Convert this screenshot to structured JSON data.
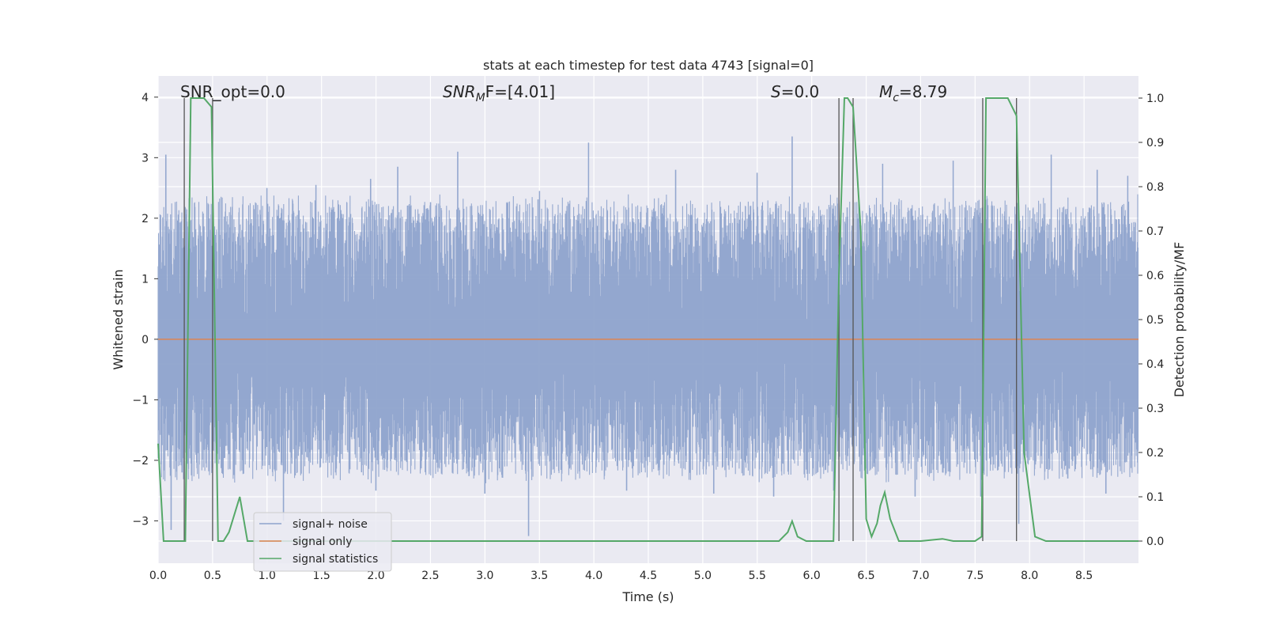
{
  "chart_data": {
    "type": "line",
    "title": "stats at each timestep for test data 4743 [signal=0]",
    "xlabel": "Time (s)",
    "ylabel_left": "Whitened strain",
    "ylabel_right": "Detection probability/MF",
    "xlim": [
      0.0,
      9.0
    ],
    "ylim_left": [
      -3.7,
      4.35
    ],
    "ylim_right": [
      -0.05,
      1.05
    ],
    "grid": true,
    "legend_position": "lower-left",
    "x_ticks": [
      "0.0",
      "0.5",
      "1.0",
      "1.5",
      "2.0",
      "2.5",
      "3.0",
      "3.5",
      "4.0",
      "4.5",
      "5.0",
      "5.5",
      "6.0",
      "6.5",
      "7.0",
      "7.5",
      "8.0",
      "8.5"
    ],
    "y_ticks_left": [
      "4",
      "3",
      "2",
      "1",
      "0",
      "−1",
      "−2",
      "−3"
    ],
    "y_ticks_right": [
      "1.0",
      "0.9",
      "0.8",
      "0.7",
      "0.6",
      "0.5",
      "0.4",
      "0.3",
      "0.2",
      "0.1",
      "0.0"
    ],
    "annotations": {
      "snr_opt": "SNR_opt=0.0",
      "snr_mf_main": "SNR",
      "snr_mf_sub": "M",
      "snr_mf_tail": "F=[4.01]",
      "s_main": "S",
      "s_tail": "=0.0",
      "mc_main": "M",
      "mc_sub": "c",
      "mc_tail": "=8.79"
    },
    "colors": {
      "noise": "#8ea3cc",
      "signal_only": "#dd8452",
      "stats": "#55a868",
      "vlines": "#555555",
      "plot_bg": "#eaeaf2",
      "grid": "#ffffff"
    },
    "series": [
      {
        "name": "signal+ noise",
        "note_shape": "dense whitened noise, envelope ~±2.5",
        "spikes": [
          [
            0.07,
            3.05
          ],
          [
            0.12,
            -3.15
          ],
          [
            0.22,
            -2.2
          ],
          [
            1.0,
            2.5
          ],
          [
            1.15,
            -3.0
          ],
          [
            1.45,
            2.55
          ],
          [
            1.95,
            2.65
          ],
          [
            2.0,
            -2.5
          ],
          [
            2.2,
            2.85
          ],
          [
            2.75,
            3.1
          ],
          [
            3.0,
            -2.55
          ],
          [
            3.4,
            -3.25
          ],
          [
            3.5,
            2.45
          ],
          [
            3.95,
            3.25
          ],
          [
            4.3,
            -2.5
          ],
          [
            4.75,
            2.8
          ],
          [
            5.1,
            -2.55
          ],
          [
            5.5,
            2.75
          ],
          [
            5.65,
            -2.6
          ],
          [
            5.82,
            3.35
          ],
          [
            6.2,
            -2.5
          ],
          [
            6.65,
            2.9
          ],
          [
            6.95,
            -2.6
          ],
          [
            7.3,
            2.95
          ],
          [
            7.55,
            -2.6
          ],
          [
            7.9,
            -3.05
          ],
          [
            8.2,
            3.05
          ],
          [
            8.35,
            -2.3
          ],
          [
            8.62,
            2.8
          ],
          [
            8.7,
            -2.55
          ],
          [
            8.9,
            2.7
          ]
        ]
      },
      {
        "name": "signal only",
        "x": [
          0.0,
          9.0
        ],
        "y": [
          0.0,
          0.0
        ]
      },
      {
        "name": "signal statistics",
        "axis": "right",
        "x": [
          0.0,
          0.05,
          0.25,
          0.3,
          0.35,
          0.42,
          0.49,
          0.55,
          0.6,
          0.65,
          0.75,
          0.82,
          0.9,
          5.7,
          5.78,
          5.82,
          5.87,
          5.95,
          6.05,
          6.2,
          6.25,
          6.3,
          6.33,
          6.38,
          6.45,
          6.5,
          6.55,
          6.6,
          6.63,
          6.67,
          6.72,
          6.8,
          7.0,
          7.2,
          7.3,
          7.5,
          7.56,
          7.6,
          7.8,
          7.88,
          7.95,
          8.05,
          8.15,
          8.5,
          9.0
        ],
        "y": [
          0.22,
          0.0,
          0.0,
          1.0,
          1.0,
          1.0,
          0.98,
          0.0,
          0.0,
          0.02,
          0.1,
          0.0,
          0.0,
          0.0,
          0.02,
          0.045,
          0.01,
          0.0,
          0.0,
          0.0,
          0.6,
          1.0,
          1.0,
          0.98,
          0.7,
          0.05,
          0.01,
          0.04,
          0.08,
          0.11,
          0.05,
          0.0,
          0.0,
          0.005,
          0.0,
          0.0,
          0.01,
          1.0,
          1.0,
          0.96,
          0.2,
          0.01,
          0.0,
          0.0,
          0.0
        ]
      }
    ],
    "vertical_lines_x": [
      0.24,
      0.5,
      6.25,
      6.38,
      7.57,
      7.88
    ]
  }
}
